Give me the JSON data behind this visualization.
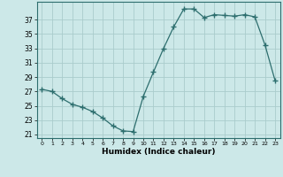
{
  "x": [
    0,
    1,
    2,
    3,
    4,
    5,
    6,
    7,
    8,
    9,
    10,
    11,
    12,
    13,
    14,
    15,
    16,
    17,
    18,
    19,
    20,
    21,
    22,
    23
  ],
  "y": [
    27.3,
    27.0,
    26.0,
    25.2,
    24.8,
    24.2,
    23.3,
    22.2,
    21.5,
    21.4,
    26.3,
    29.7,
    33.0,
    36.0,
    38.5,
    38.5,
    37.3,
    37.7,
    37.6,
    37.5,
    37.7,
    37.4,
    33.5,
    28.5
  ],
  "xlabel": "Humidex (Indice chaleur)",
  "yticks": [
    21,
    23,
    25,
    27,
    29,
    31,
    33,
    35,
    37
  ],
  "xticks": [
    0,
    1,
    2,
    3,
    4,
    5,
    6,
    7,
    8,
    9,
    10,
    11,
    12,
    13,
    14,
    15,
    16,
    17,
    18,
    19,
    20,
    21,
    22,
    23
  ],
  "ylim": [
    20.5,
    39.5
  ],
  "xlim": [
    -0.5,
    23.5
  ],
  "line_color": "#2d6e6e",
  "marker_color": "#2d6e6e",
  "bg_color": "#cce8e8",
  "grid_color": "#aacccc",
  "axis_color": "#2d6e6e"
}
